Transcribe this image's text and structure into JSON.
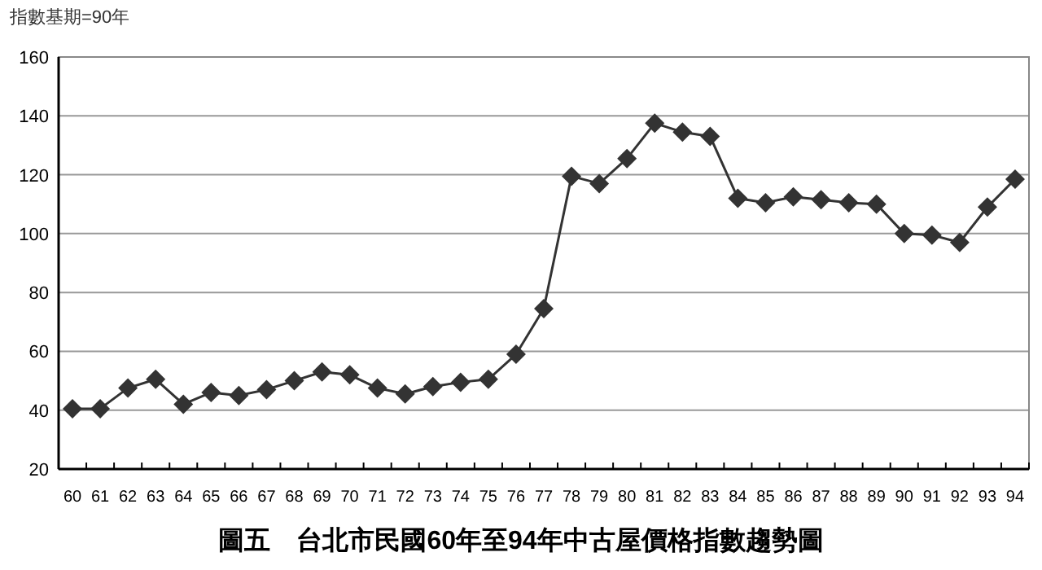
{
  "chart_data": {
    "type": "line",
    "title": "圖五　台北市民國60年至94年中古屋價格指數趨勢圖",
    "ylabel": "指數基期=90年",
    "categories": [
      "60",
      "61",
      "62",
      "63",
      "64",
      "65",
      "66",
      "67",
      "68",
      "69",
      "70",
      "71",
      "72",
      "73",
      "74",
      "75",
      "76",
      "77",
      "78",
      "79",
      "80",
      "81",
      "82",
      "83",
      "84",
      "85",
      "86",
      "87",
      "88",
      "89",
      "90",
      "91",
      "92",
      "93",
      "94"
    ],
    "values": [
      40.5,
      40.5,
      47.5,
      50.5,
      42,
      46,
      45,
      47,
      50,
      53,
      52,
      47.5,
      45.5,
      48,
      49.5,
      50.5,
      59,
      74.5,
      119.5,
      117,
      125.5,
      137.5,
      134.5,
      133,
      112,
      110.5,
      112.5,
      111.5,
      110.5,
      110,
      100,
      99.5,
      97,
      109,
      118.5
    ],
    "color": "#333333",
    "ylim": [
      20,
      160
    ],
    "yticks": [
      20,
      40,
      60,
      80,
      100,
      120,
      140,
      160
    ],
    "grid": "y",
    "marker": "diamond"
  }
}
